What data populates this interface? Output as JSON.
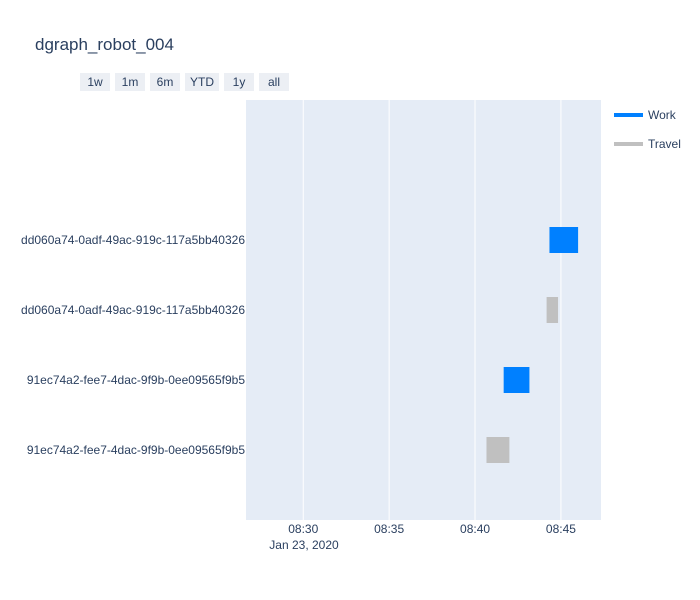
{
  "title": "dgraph_robot_004",
  "range_selector": [
    "1w",
    "1m",
    "6m",
    "YTD",
    "1y",
    "all"
  ],
  "colors": {
    "plot_bg": "#e5ecf6",
    "grid": "#ffffff",
    "text": "#2a3f5f",
    "Work": "#0080ff",
    "Travel": "#c0c0c0"
  },
  "chart_data": {
    "type": "gantt",
    "title": "dgraph_robot_004",
    "x_axis": {
      "type": "date",
      "range": [
        "2020-01-23 08:26:40",
        "2020-01-23 08:47:20"
      ],
      "ticks": [
        "08:30",
        "08:35",
        "08:40",
        "08:45"
      ],
      "tick_values": [
        "2020-01-23 08:30",
        "2020-01-23 08:35",
        "2020-01-23 08:40",
        "2020-01-23 08:45"
      ],
      "date_label": "Jan 23, 2020",
      "grid": true
    },
    "y_axis": {
      "categories": [
        "91ec74a2-fee7-4dac-9f9b-0ee09565f9b5",
        "91ec74a2-fee7-4dac-9f9b-0ee09565f9b5",
        "dd060a74-0adf-49ac-919c-117a5bb40326",
        "dd060a74-0adf-49ac-919c-117a5bb40326"
      ]
    },
    "legend": {
      "position": "top-right",
      "items": [
        "Work",
        "Travel"
      ]
    },
    "tasks": [
      {
        "row": 3,
        "type": "Work",
        "start": "2020-01-23 08:44:20",
        "end": "2020-01-23 08:46:00"
      },
      {
        "row": 2,
        "type": "Travel",
        "start": "2020-01-23 08:44:10",
        "end": "2020-01-23 08:44:50"
      },
      {
        "row": 1,
        "type": "Work",
        "start": "2020-01-23 08:41:40",
        "end": "2020-01-23 08:43:10"
      },
      {
        "row": 0,
        "type": "Travel",
        "start": "2020-01-23 08:40:40",
        "end": "2020-01-23 08:42:00"
      }
    ]
  }
}
